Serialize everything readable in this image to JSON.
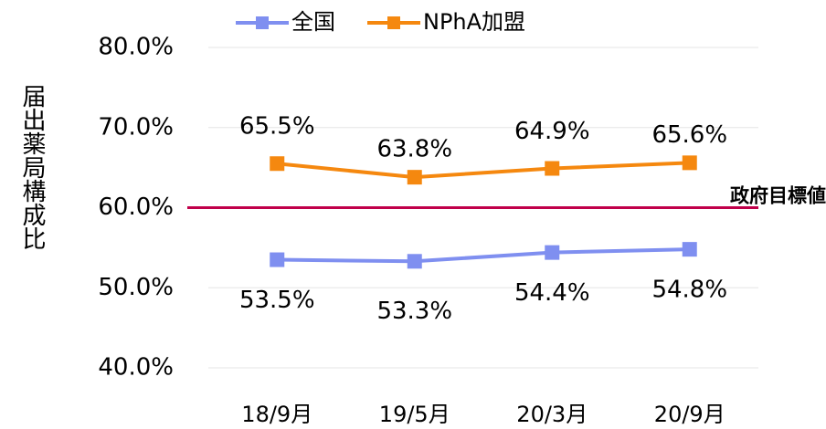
{
  "chart_data": {
    "type": "line",
    "y_label": "届出薬局構成比",
    "categories": [
      "18/9月",
      "19/5月",
      "20/3月",
      "20/9月"
    ],
    "series": [
      {
        "name": "全国",
        "color": "#7f8ff0",
        "values": [
          53.5,
          53.3,
          54.4,
          54.8
        ],
        "value_labels": [
          "53.5%",
          "53.3%",
          "54.4%",
          "54.8%"
        ],
        "label_position": "below"
      },
      {
        "name": "NPhA加盟",
        "color": "#f5880f",
        "values": [
          65.5,
          63.8,
          64.9,
          65.6
        ],
        "value_labels": [
          "65.5%",
          "63.8%",
          "64.9%",
          "65.6%"
        ],
        "label_position": "above"
      }
    ],
    "ylim": [
      40,
      80
    ],
    "yticks": [
      {
        "value": 40,
        "label": "40.0%"
      },
      {
        "value": 50,
        "label": "50.0%"
      },
      {
        "value": 60,
        "label": "60.0%"
      },
      {
        "value": 70,
        "label": "70.0%"
      },
      {
        "value": 80,
        "label": "80.0%"
      }
    ],
    "grid": true,
    "reference_line": {
      "value": 60,
      "label": "政府目標値",
      "color": "#c0004a"
    },
    "legend": "top"
  }
}
